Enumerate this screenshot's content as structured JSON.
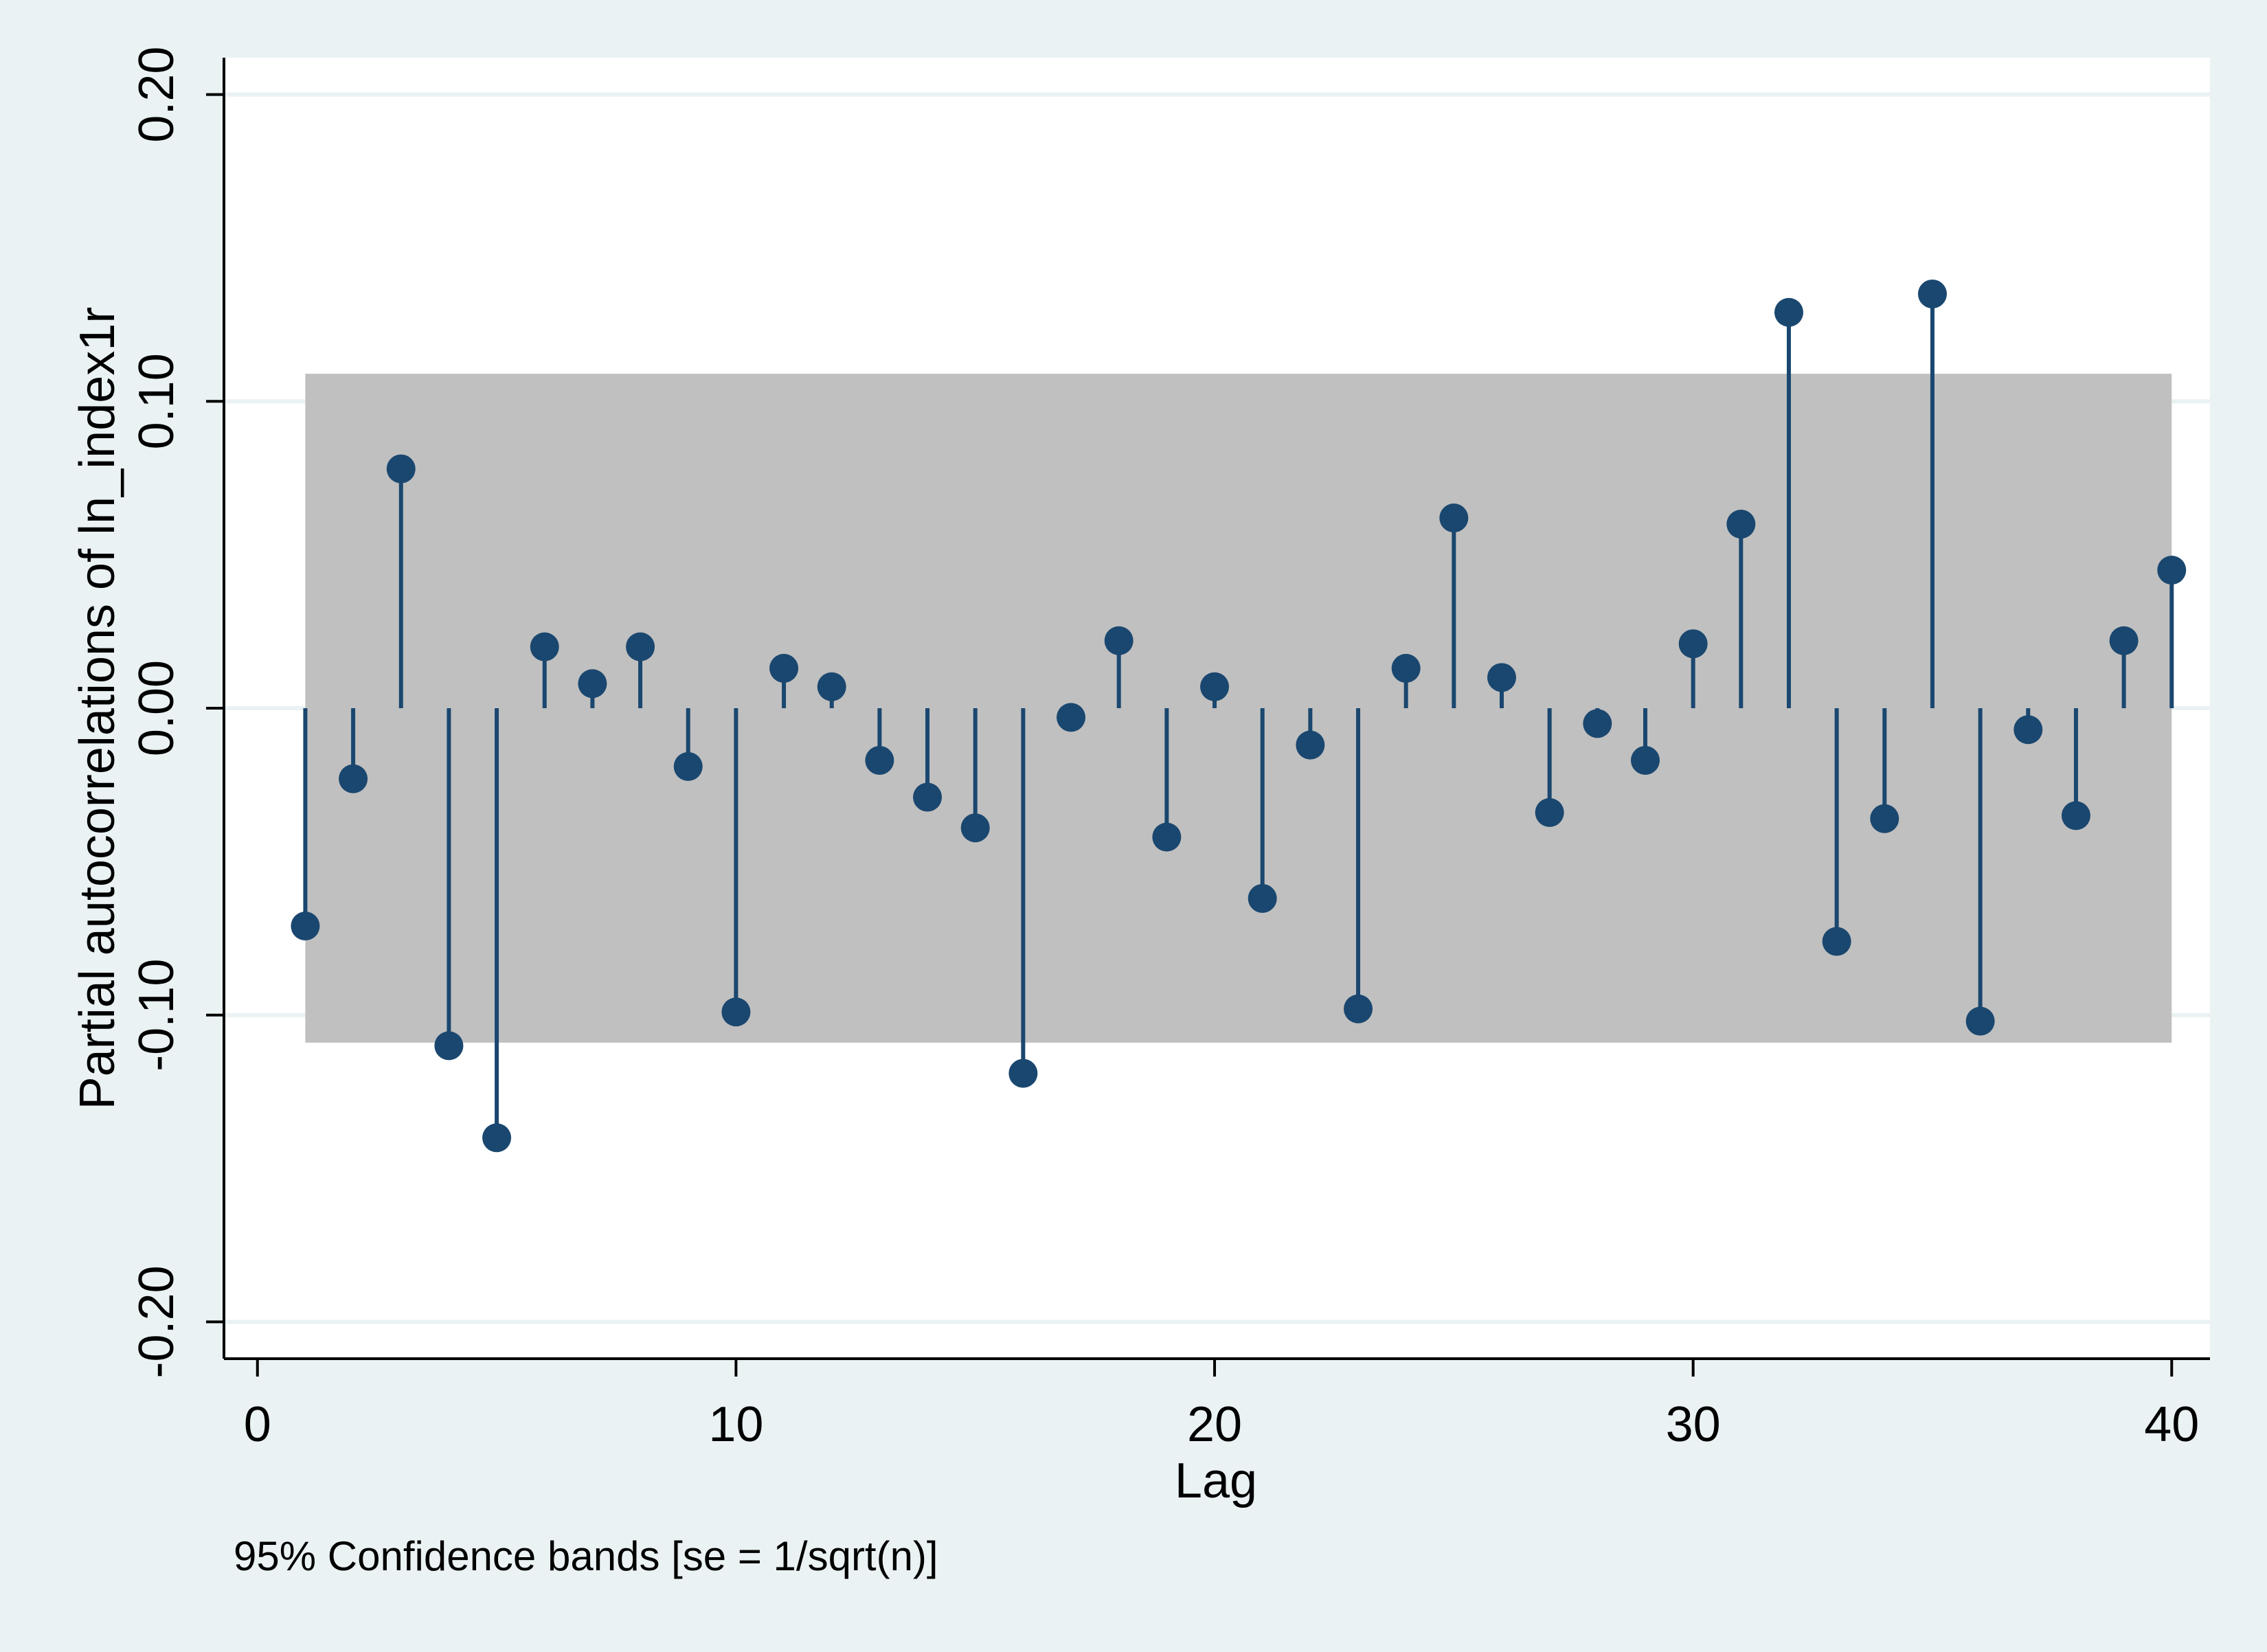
{
  "chart_data": {
    "type": "stem",
    "title": "",
    "xlabel": "Lag",
    "ylabel": "Partial autocorrelations of ln_index1r",
    "note": "95% Confidence bands [se = 1/sqrt(n)]",
    "x_ticks": [
      "0",
      "10",
      "20",
      "30",
      "40"
    ],
    "y_ticks": [
      "-0.20",
      "-0.10",
      "0.00",
      "0.10",
      "0.20"
    ],
    "xlim": [
      -0.7,
      40.8
    ],
    "ylim": [
      -0.212,
      0.212
    ],
    "grid": true,
    "legend": "none",
    "confidence_band": {
      "lower": -0.109,
      "upper": 0.109,
      "x_start": 1,
      "x_end": 40,
      "color": "#c0c0c0"
    },
    "series": [
      {
        "color": "#1a476f",
        "x": [
          1,
          2,
          3,
          4,
          5,
          6,
          7,
          8,
          9,
          10,
          11,
          12,
          13,
          14,
          15,
          16,
          17,
          18,
          19,
          20,
          21,
          22,
          23,
          24,
          25,
          26,
          27,
          28,
          29,
          30,
          31,
          32,
          33,
          34,
          35,
          36,
          37,
          38,
          39,
          40
        ],
        "values": [
          -0.071,
          -0.023,
          0.078,
          -0.11,
          -0.14,
          0.02,
          0.008,
          0.02,
          -0.019,
          -0.099,
          0.013,
          0.007,
          -0.017,
          -0.029,
          -0.039,
          -0.119,
          -0.003,
          0.022,
          -0.042,
          0.007,
          -0.062,
          -0.012,
          -0.098,
          0.013,
          0.062,
          0.01,
          -0.034,
          -0.005,
          -0.017,
          0.021,
          0.06,
          0.129,
          -0.076,
          -0.036,
          0.135,
          -0.102,
          -0.007,
          -0.035,
          0.022,
          0.045
        ]
      }
    ]
  }
}
